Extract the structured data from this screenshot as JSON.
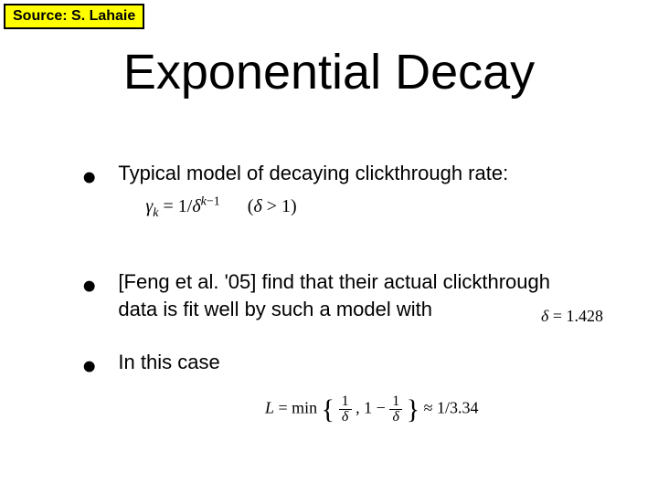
{
  "source_label": "Source: S. Lahaie",
  "title": "Exponential Decay",
  "bullets": {
    "b1": {
      "text": "Typical model of decaying clickthrough rate:",
      "formula_gamma": "γ",
      "formula_k": "k",
      "formula_eq": " = 1/δ",
      "formula_exp": "k−1",
      "formula_cond": "(δ > 1)"
    },
    "b2": {
      "text_pre": "[Feng et al. '05] find that their actual clickthrough",
      "text_mid": " data is fit well by such a model with",
      "delta_formula": "δ = 1.428"
    },
    "b3": {
      "text": "In this case",
      "l_label": "L = min",
      "frac1_num": "1",
      "frac1_den": "δ",
      "comma": ", 1 − ",
      "frac2_num": "1",
      "frac2_den": "δ",
      "approx": " ≈ 1/3.34"
    }
  },
  "colors": {
    "source_bg": "#ffff00",
    "source_border": "#000000",
    "text": "#000000",
    "background": "#ffffff"
  },
  "typography": {
    "title_size": 54,
    "body_size": 22,
    "source_size": 16
  }
}
